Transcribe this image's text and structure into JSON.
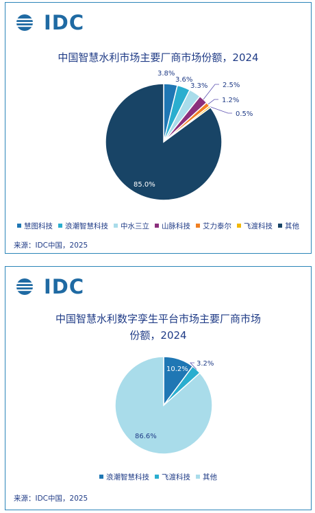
{
  "colors": {
    "brand": "#1f6aa3",
    "border": "#2a84b8",
    "title": "#1f3b86"
  },
  "charts": [
    {
      "logo": "IDC",
      "source": "来源：IDC中国，2025",
      "chart_data": {
        "type": "pie",
        "title": "中国智慧水利市场主要厂商市场份额，2024",
        "legend_position": "bottom",
        "slices": [
          {
            "name": "慧图科技",
            "value": 3.8,
            "label": "3.8%",
            "color": "#1f77b4"
          },
          {
            "name": "浪潮智慧科技",
            "value": 3.6,
            "label": "3.6%",
            "color": "#2aaecf"
          },
          {
            "name": "中水三立",
            "value": 3.3,
            "label": "3.3%",
            "color": "#a9dcea"
          },
          {
            "name": "山脉科技",
            "value": 2.5,
            "label": "2.5%",
            "color": "#8b2f7c"
          },
          {
            "name": "艾力泰尔",
            "value": 1.2,
            "label": "1.2%",
            "color": "#f07f22"
          },
          {
            "name": "飞渡科技",
            "value": 0.5,
            "label": "0.5%",
            "color": "#f2b705"
          },
          {
            "name": "其他",
            "value": 85.0,
            "label": "85.0%",
            "color": "#184466"
          }
        ]
      }
    },
    {
      "logo": "IDC",
      "source": "来源：IDC中国，2025",
      "chart_data": {
        "type": "pie",
        "title": "中国智慧水利数字孪生平台市场主要厂商市场份额，2024",
        "legend_position": "bottom",
        "slices": [
          {
            "name": "浪潮智慧科技",
            "value": 10.2,
            "label": "10.2%",
            "color": "#1f77b4"
          },
          {
            "name": "飞渡科技",
            "value": 3.2,
            "label": "3.2%",
            "color": "#2aaecf"
          },
          {
            "name": "其他",
            "value": 86.6,
            "label": "86.6%",
            "color": "#a9dcea"
          }
        ]
      }
    }
  ]
}
